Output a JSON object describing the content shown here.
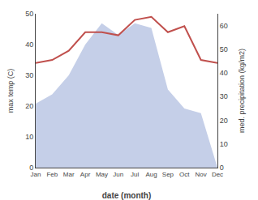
{
  "chart_data": {
    "type": "line",
    "categories": [
      "Jan",
      "Feb",
      "Mar",
      "Apr",
      "May",
      "Jun",
      "Jul",
      "Aug",
      "Sep",
      "Oct",
      "Nov",
      "Dec"
    ],
    "series": [
      {
        "type": "area",
        "axis": "y2",
        "color": "#c5cfe8",
        "values": [
          27,
          31,
          39,
          52,
          61,
          56,
          61,
          59,
          33,
          25,
          23,
          0
        ]
      },
      {
        "type": "line",
        "axis": "y",
        "color": "#c0504d",
        "values": [
          34,
          35,
          38,
          44,
          44,
          43,
          48,
          49,
          44,
          46,
          35,
          34
        ]
      }
    ],
    "xlabel": "date (month)",
    "ylabel": "max temp (C)",
    "y2label": "med. precipitation (kg/m2)",
    "ylim": [
      0,
      50
    ],
    "yticks": [
      0,
      10,
      20,
      30,
      40,
      50
    ],
    "y2lim": [
      0,
      65
    ],
    "y2ticks": [
      0,
      10,
      20,
      30,
      40,
      50,
      60
    ],
    "grid": false
  }
}
